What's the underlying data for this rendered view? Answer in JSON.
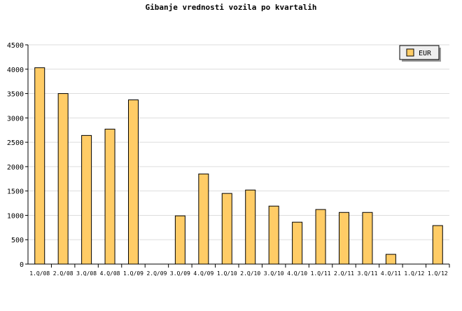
{
  "chart_data": {
    "type": "bar",
    "title": "Gibanje vrednosti vozila po kvartalih",
    "xlabel": "",
    "ylabel": "",
    "ylim": [
      0,
      4500
    ],
    "yticks": [
      0,
      500,
      1000,
      1500,
      2000,
      2500,
      3000,
      3500,
      4000,
      4500
    ],
    "grid": true,
    "legend_position": "top-right",
    "categories": [
      "1.Q/08",
      "2.Q/08",
      "3.Q/08",
      "4.Q/08",
      "1.Q/09",
      "2.Q/09",
      "3.Q/09",
      "4.Q/09",
      "1.Q/10",
      "2.Q/10",
      "3.Q/10",
      "4.Q/10",
      "1.Q/11",
      "2.Q/11",
      "3.Q/11",
      "4.Q/11",
      "1.Q/12",
      "1.Q/12"
    ],
    "series": [
      {
        "name": "EUR",
        "color": "#ffcc66",
        "values": [
          4030,
          3500,
          2640,
          2770,
          3370,
          0,
          990,
          1850,
          1450,
          1520,
          1190,
          860,
          1120,
          1060,
          1060,
          200,
          0,
          790
        ]
      }
    ]
  }
}
